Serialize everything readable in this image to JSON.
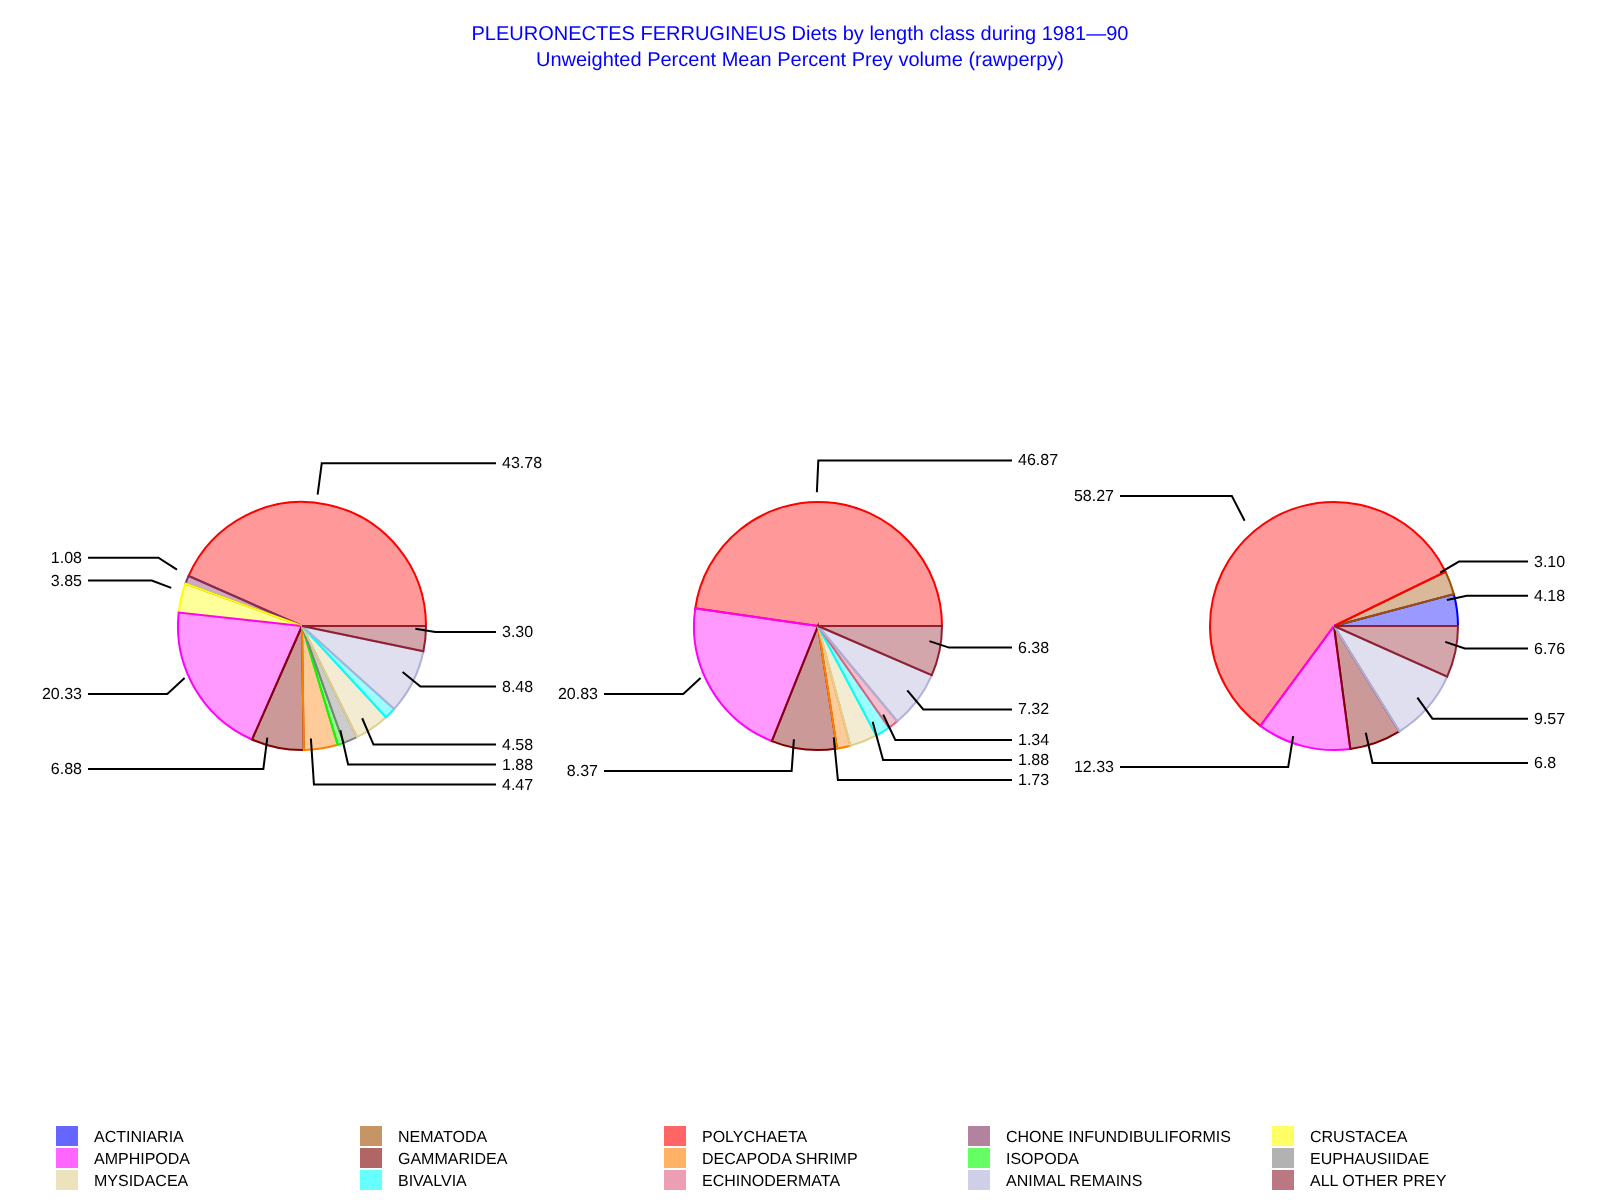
{
  "chart_data": [
    {
      "type": "pie",
      "legend": "bottom",
      "categories": [
        "ACTINIARIA",
        "NEMATODA",
        "POLYCHAETA",
        "CHONE INFUNDIBULIFORMIS",
        "CRUSTACEA",
        "AMPHIPODA",
        "GAMMARIDEA",
        "DECAPODA SHRIMP",
        "ISOPODA",
        "EUPHAUSIIDAE",
        "MYSIDACEA",
        "BIVALVIA",
        "ECHINODERMATA",
        "ANIMAL REMAINS",
        "ALL OTHER PREY"
      ],
      "colors": [
        "#0000ff",
        "#a05000",
        "#ff0000",
        "#803060",
        "#ffff00",
        "#ff00ff",
        "#800000",
        "#ff8000",
        "#00ff00",
        "#808080",
        "#e0d090",
        "#00ffff",
        "#e06080",
        "#b0b0d8",
        "#902030"
      ],
      "values": [
        null,
        null,
        43.78,
        1.08,
        3.85,
        20.33,
        6.88,
        4.47,
        0.8,
        1.88,
        4.58,
        1.5,
        null,
        8.48,
        3.3
      ],
      "value_labels": [
        null,
        null,
        "43.78",
        "1.08",
        "3.85",
        "20.33",
        "6.88",
        "4.47",
        null,
        "1.88",
        "4.58",
        null,
        null,
        "8.48",
        "3.30"
      ]
    },
    {
      "type": "pie",
      "title": "PLEURONECTES FERRUGINEUS Diets by length class during 1981—90",
      "subtitle": "Unweighted Percent Mean Percent Prey  volume (rawperpy)",
      "categories": [
        null,
        null,
        null,
        null,
        null,
        null,
        null,
        null,
        null,
        null,
        null,
        null,
        null,
        null,
        null
      ],
      "colors": [
        "#0000ff",
        "#a05000",
        "#ff0000",
        "#803060",
        "#ffff00",
        "#ff00ff",
        "#800000",
        "#ff8000",
        "#00ff00",
        "#808080",
        "#e0d090",
        "#00ffff",
        "#e06080",
        "#b0b0d8",
        "#902030"
      ],
      "values": [
        null,
        null,
        46.87,
        null,
        null,
        20.83,
        8.37,
        1.73,
        null,
        null,
        3.5,
        1.88,
        1.34,
        7.32,
        6.38
      ],
      "value_labels": [
        null,
        null,
        "46.87",
        null,
        null,
        "20.83",
        "8.37",
        "1.73",
        null,
        null,
        null,
        "1.88",
        "1.34",
        "7.32",
        "6.38"
      ]
    },
    {
      "type": "pie",
      "categories": [
        null,
        null,
        null,
        null,
        null,
        null,
        null,
        null,
        null,
        null,
        null,
        null,
        null,
        null,
        null
      ],
      "colors": [
        "#0000ff",
        "#a05000",
        "#ff0000",
        "#803060",
        "#ffff00",
        "#ff00ff",
        "#800000",
        "#ff8000",
        "#00ff00",
        "#808080",
        "#e0d090",
        "#00ffff",
        "#e06080",
        "#b0b0d8",
        "#902030"
      ],
      "values": [
        4.18,
        3.1,
        58.27,
        null,
        null,
        12.33,
        6.8,
        null,
        null,
        null,
        null,
        null,
        null,
        9.57,
        6.76
      ],
      "value_labels": [
        "4.18",
        "3.10",
        "58.27",
        null,
        null,
        "12.33",
        "6.8",
        null,
        null,
        null,
        null,
        null,
        null,
        "9.57",
        "6.76"
      ]
    }
  ]
}
